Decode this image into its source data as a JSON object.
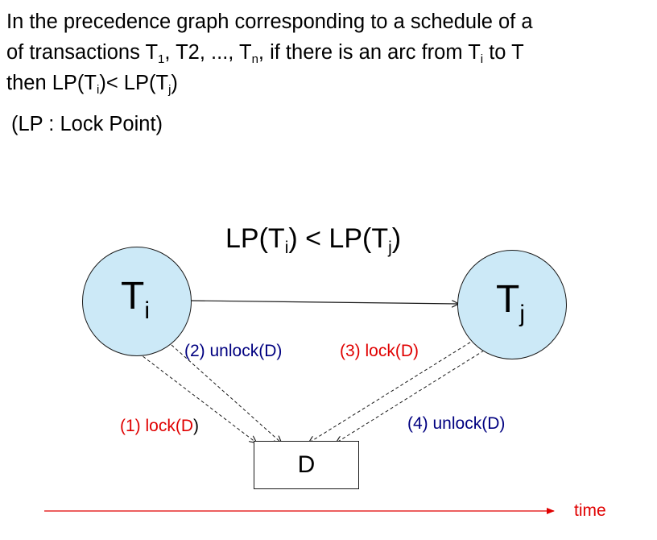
{
  "statement": {
    "line1": "In the precedence graph corresponding to a schedule of a",
    "line2_a": "of transactions T",
    "line2_sub1": "1",
    "line2_b": ", T2, ..., T",
    "line2_sub2": "n",
    "line2_c": ", if there is  an arc from T",
    "line2_sub3": "i",
    "line2_d": "  to T",
    "line3_a": "then LP(T",
    "line3_sub1": "i",
    "line3_b": ")< LP(T",
    "line3_sub2": "j",
    "line3_c": ")"
  },
  "note": "(LP : Lock Point)",
  "equation": {
    "a": "LP(T",
    "sub1": "i",
    "b": ") < LP(T",
    "sub2": "j",
    "c": ")"
  },
  "nodes": {
    "ti": {
      "base": "T",
      "sub": "i"
    },
    "tj": {
      "base": "T",
      "sub": "j"
    }
  },
  "data_box": "D",
  "labels": {
    "l1_a": "(1) lock(D",
    "l1_b": ")",
    "l2": "(2) unlock(D)",
    "l3": "(3) lock(D)",
    "l4": "(4) unlock(D)"
  },
  "timeline": {
    "label": "time"
  },
  "colors": {
    "node_fill": "#cce9f7",
    "lock": "#e00000",
    "unlock": "#000080",
    "time_arrow": "#e00000"
  }
}
